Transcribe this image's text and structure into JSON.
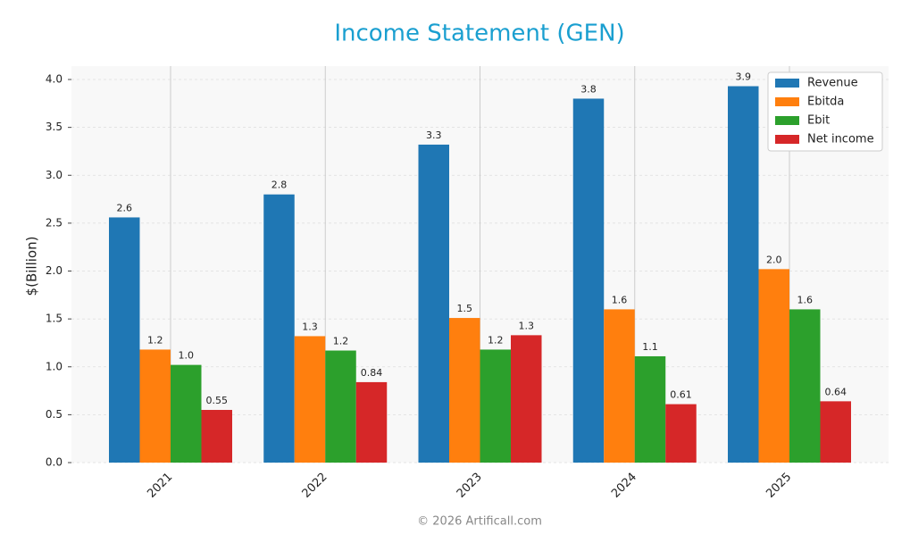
{
  "chart_data": {
    "type": "bar",
    "title": "Income Statement (GEN)",
    "ylabel": "$(Billion)",
    "footer": "© 2026 Artificall.com",
    "categories": [
      "2021",
      "2022",
      "2023",
      "2024",
      "2025"
    ],
    "series": [
      {
        "name": "Revenue",
        "color": "#1f77b4",
        "values": [
          2.56,
          2.8,
          3.32,
          3.8,
          3.93
        ],
        "value_labels": [
          "2.6",
          "2.8",
          "3.3",
          "3.8",
          "3.9"
        ]
      },
      {
        "name": "Ebitda",
        "color": "#ff7f0e",
        "values": [
          1.18,
          1.32,
          1.51,
          1.6,
          2.02
        ],
        "value_labels": [
          "1.2",
          "1.3",
          "1.5",
          "1.6",
          "2.0"
        ]
      },
      {
        "name": "Ebit",
        "color": "#2ca02c",
        "values": [
          1.02,
          1.17,
          1.18,
          1.11,
          1.6
        ],
        "value_labels": [
          "1.0",
          "1.2",
          "1.2",
          "1.1",
          "1.6"
        ]
      },
      {
        "name": "Net income",
        "color": "#d62728",
        "values": [
          0.55,
          0.84,
          1.33,
          0.61,
          0.64
        ],
        "value_labels": [
          "0.55",
          "0.84",
          "1.3",
          "0.61",
          "0.64"
        ]
      }
    ],
    "ylim": [
      0,
      4.14
    ],
    "yticks": [
      {
        "value": 0,
        "label": "0.0"
      },
      0.5,
      {
        "value": 1,
        "label": "1.0"
      },
      1.5,
      {
        "value": 2,
        "label": "2.0"
      },
      2.5,
      {
        "value": 3,
        "label": "3.0"
      },
      3.5,
      {
        "value": 4,
        "label": "4.0"
      }
    ],
    "grid": true,
    "legend": "upper-right"
  }
}
